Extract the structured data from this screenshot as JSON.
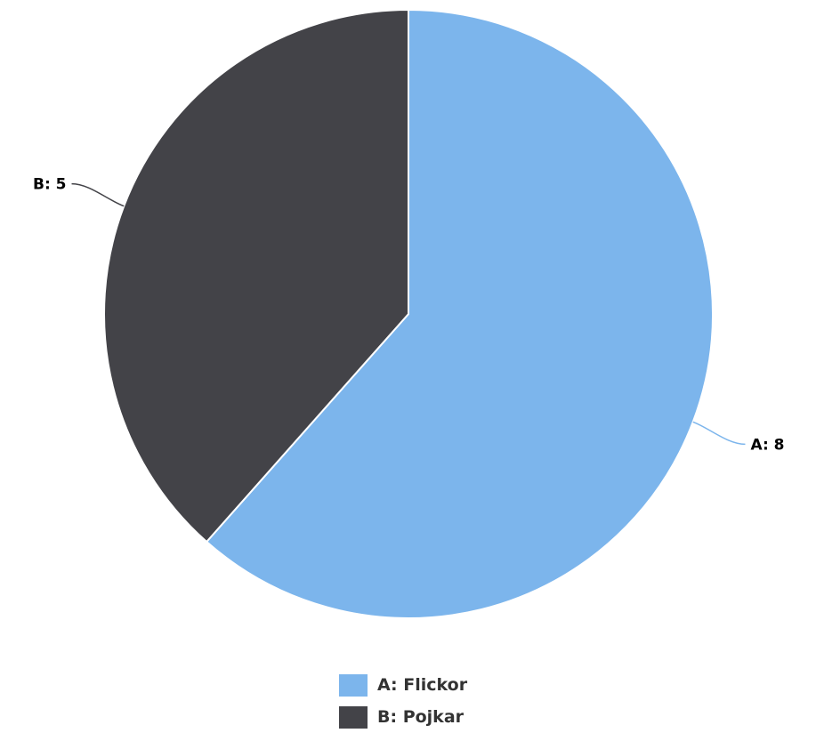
{
  "chart_data": {
    "type": "pie",
    "categories": [
      "A",
      "B"
    ],
    "values": [
      8,
      5
    ],
    "data_labels": [
      "A: 8",
      "B: 5"
    ],
    "legend_labels": [
      "A: Flickor",
      "B: Pojkar"
    ],
    "colors": [
      "#7cb5ec",
      "#434348"
    ],
    "legend_position": "bottom-center",
    "start_angle_deg": 0
  }
}
